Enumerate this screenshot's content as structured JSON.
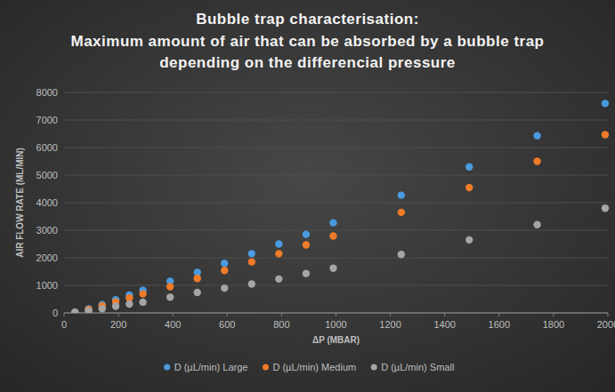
{
  "chart_data": {
    "type": "scatter",
    "title": "Bubble trap characterisation:",
    "subtitle": "Maximum amount of air that can be absorbed by a bubble trap depending on the differencial pressure",
    "x_label": "ΔP (MBAR)",
    "y_label": "AIR FLOW RATE (ML/MIN)",
    "x": [
      40,
      90,
      140,
      190,
      240,
      290,
      390,
      490,
      590,
      690,
      790,
      890,
      990,
      1240,
      1490,
      1740,
      1990
    ],
    "series": [
      {
        "name": "D (µL/min) Large",
        "color": "#4a9ae0",
        "marker": "circle",
        "values": [
          30,
          150,
          300,
          480,
          650,
          820,
          1150,
          1470,
          1800,
          2150,
          2500,
          2850,
          3270,
          4270,
          5300,
          6430,
          7600
        ]
      },
      {
        "name": "D (µL/min) Medium",
        "color": "#f07b28",
        "marker": "circle",
        "values": [
          20,
          120,
          250,
          400,
          540,
          690,
          950,
          1250,
          1540,
          1850,
          2150,
          2470,
          2790,
          3650,
          4550,
          5500,
          6470
        ]
      },
      {
        "name": "D (µL/min) Small",
        "color": "#a5a5a5",
        "marker": "circle",
        "values": [
          10,
          70,
          150,
          240,
          320,
          390,
          570,
          740,
          900,
          1050,
          1230,
          1430,
          1620,
          2120,
          2650,
          3200,
          3800
        ]
      }
    ],
    "xlim": [
      0,
      2000
    ],
    "xticks": [
      0,
      200,
      400,
      600,
      800,
      1000,
      1200,
      1400,
      1600,
      1800,
      2000
    ],
    "ylim": [
      0,
      8000
    ],
    "yticks": [
      0,
      1000,
      2000,
      3000,
      4000,
      5000,
      6000,
      7000,
      8000
    ],
    "grid": true,
    "legend": "bottom"
  }
}
